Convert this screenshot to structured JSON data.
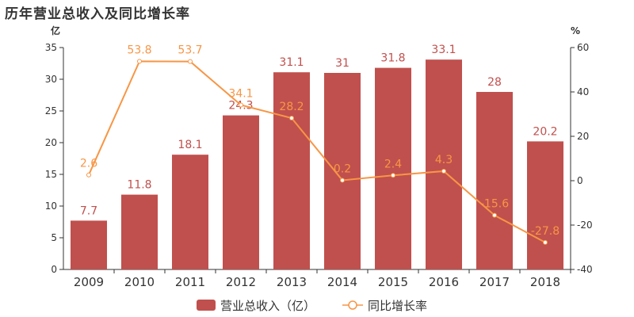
{
  "chart_data": {
    "type": "bar+line",
    "title": "历年营业总收入及同比增长率",
    "categories": [
      "2009",
      "2010",
      "2011",
      "2012",
      "2013",
      "2014",
      "2015",
      "2016",
      "2017",
      "2018"
    ],
    "series": [
      {
        "name": "营业总收入（亿）",
        "type": "bar",
        "axis": "left",
        "color": "#c0504d",
        "values": [
          7.7,
          11.8,
          18.1,
          24.3,
          31.1,
          31,
          31.8,
          33.1,
          28,
          20.2
        ]
      },
      {
        "name": "同比增长率",
        "type": "line",
        "axis": "right",
        "color": "#f79646",
        "values": [
          2.6,
          53.8,
          53.7,
          34.1,
          28.2,
          0.2,
          2.4,
          4.3,
          -15.6,
          -27.8
        ]
      }
    ],
    "y_left": {
      "unit": "亿",
      "lim": [
        0,
        35
      ],
      "ticks": [
        0,
        5,
        10,
        15,
        20,
        25,
        30,
        35
      ]
    },
    "y_right": {
      "unit": "%",
      "lim": [
        -40,
        60
      ],
      "ticks": [
        -40,
        -20,
        0,
        20,
        40,
        60
      ]
    },
    "grid": false,
    "legend": "bottom"
  }
}
